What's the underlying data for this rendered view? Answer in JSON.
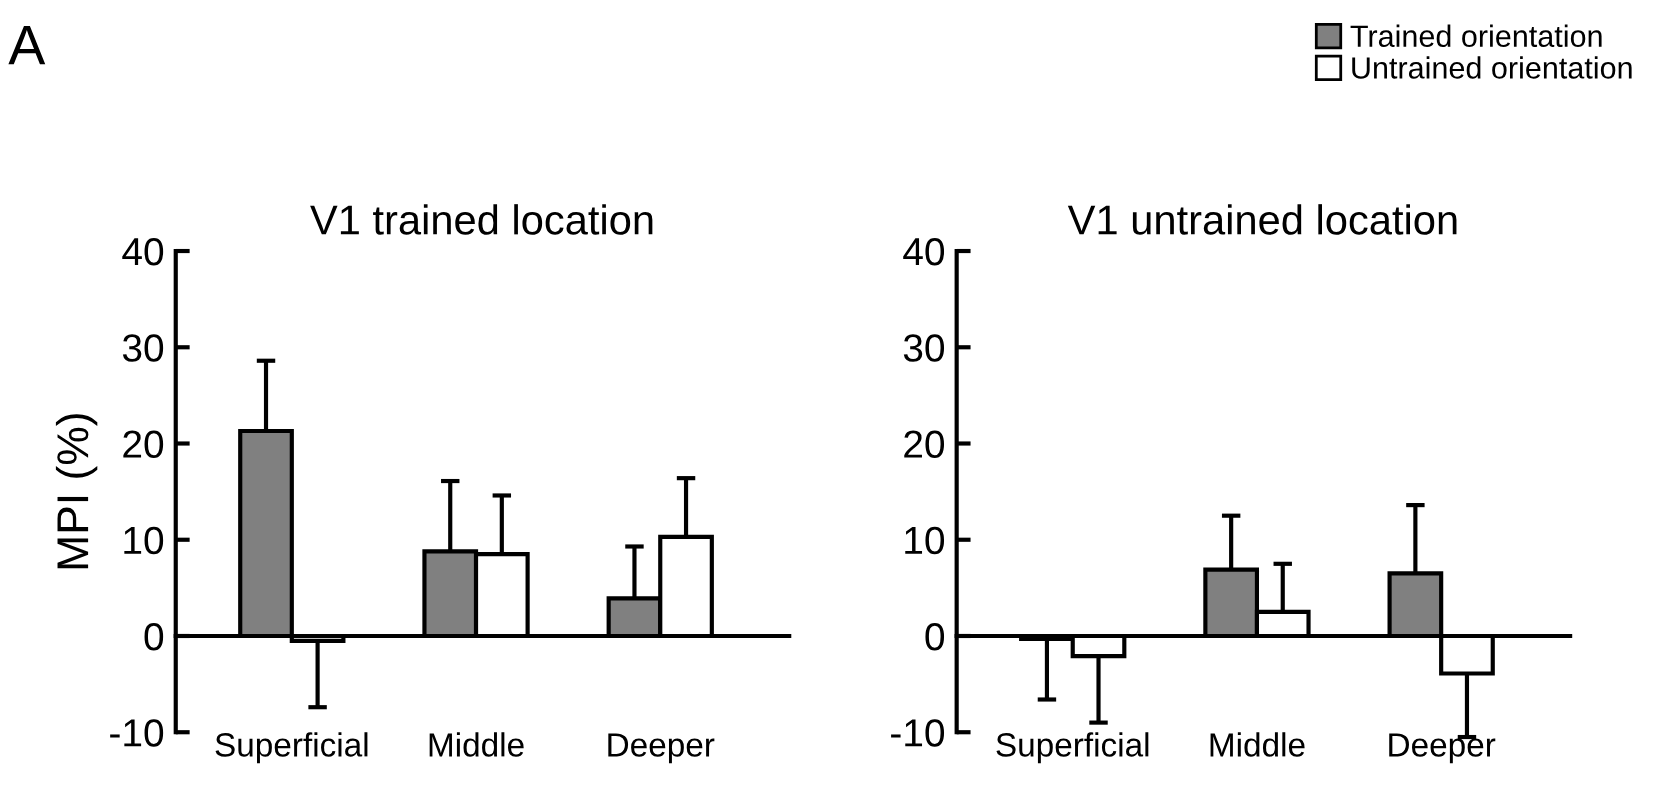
{
  "chart_data": [
    {
      "type": "bar",
      "title": "V1 trained location",
      "ylabel": "MPI (%)",
      "annotations": [
        "A"
      ],
      "categories": [
        "Superficial",
        "Middle",
        "Deeper"
      ],
      "series": [
        {
          "name": "Trained orientation",
          "color": "#808080",
          "values": [
            21.3,
            8.8,
            3.9
          ],
          "errors": [
            [
              21.3,
              28.6
            ],
            [
              8.8,
              16.1
            ],
            [
              3.9,
              9.3
            ]
          ]
        },
        {
          "name": "Untrained orientation",
          "color": "#ffffff",
          "values": [
            -0.5,
            8.5,
            10.3
          ],
          "errors": [
            [
              -7.4,
              -0.5
            ],
            [
              8.5,
              14.6
            ],
            [
              10.3,
              16.4
            ]
          ]
        }
      ],
      "ylim": [
        -10,
        40
      ],
      "yticks": [
        -10,
        0,
        10,
        20,
        30,
        40
      ],
      "legend": "top right"
    },
    {
      "type": "bar",
      "title": "V1 untrained location",
      "categories": [
        "Superficial",
        "Middle",
        "Deeper"
      ],
      "series": [
        {
          "color": "#808080",
          "values": [
            -0.3,
            6.9,
            6.5
          ],
          "errors": [
            [
              -6.6,
              -0.3
            ],
            [
              6.9,
              12.5
            ],
            [
              6.5,
              13.6
            ]
          ]
        },
        {
          "color": "#ffffff",
          "values": [
            -2.1,
            2.5,
            -3.9
          ],
          "errors": [
            [
              -9.0,
              -2.1
            ],
            [
              2.5,
              7.5
            ],
            [
              -10.5,
              -3.9
            ]
          ]
        }
      ],
      "ylim": [
        -10,
        40
      ],
      "yticks": [
        -10,
        0,
        10,
        20,
        30,
        40
      ]
    }
  ]
}
